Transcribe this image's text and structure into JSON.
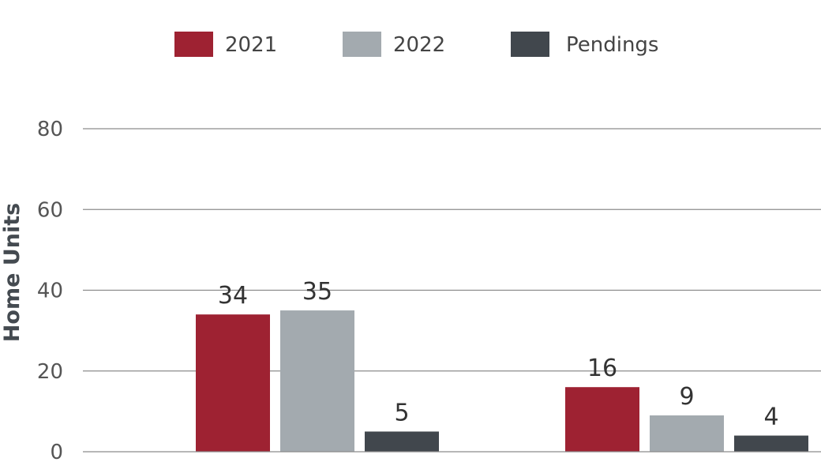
{
  "chart_data": {
    "type": "bar",
    "title": "",
    "xlabel": "",
    "ylabel": "Home Units",
    "ylim": [
      0,
      80
    ],
    "yticks": [
      0,
      20,
      40,
      60,
      80
    ],
    "grid": true,
    "legend_position": "top",
    "categories": [
      "",
      ""
    ],
    "series": [
      {
        "name": "2021",
        "color": "#9e2232",
        "values": [
          34,
          16
        ]
      },
      {
        "name": "2022",
        "color": "#a3aaaf",
        "values": [
          35,
          9
        ]
      },
      {
        "name": "Pendings",
        "color": "#41474d",
        "values": [
          5,
          4
        ]
      }
    ]
  }
}
